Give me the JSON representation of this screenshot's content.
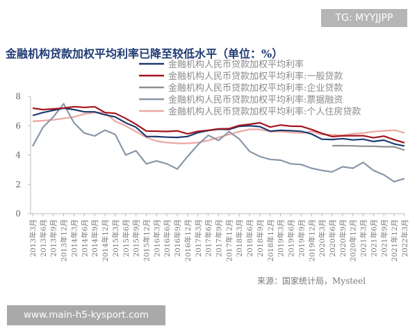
{
  "badge": "TG: MYYJJPP",
  "watermark": "www.main-h5-kysport.com",
  "chart_data": {
    "type": "line",
    "title": "金融机构贷款加权平均利率已降至较低水平（单位：%）",
    "source": "来源：国家统计局，Mysteel",
    "xlabel": "",
    "ylabel": "",
    "ylim": [
      0,
      8
    ],
    "yticks": [
      "0",
      "2",
      "4",
      "6",
      "8"
    ],
    "grid": false,
    "legend": "top-right",
    "categories": [
      "2013年3月",
      "2013年6月",
      "2013年9月",
      "2013年12月",
      "2014年3月",
      "2014年6月",
      "2014年9月",
      "2014年12月",
      "2015年3月",
      "2015年6月",
      "2015年9月",
      "2015年12月",
      "2016年3月",
      "2016年6月",
      "2016年9月",
      "2016年12月",
      "2017年3月",
      "2017年6月",
      "2017年9月",
      "2017年12月",
      "2018年3月",
      "2018年6月",
      "2018年9月",
      "2018年12月",
      "2019年3月",
      "2019年6月",
      "2019年9月",
      "2019年12月",
      "2020年3月",
      "2020年6月",
      "2020年9月",
      "2020年12月",
      "2021年3月",
      "2021年6月",
      "2021年9月",
      "2021年12月",
      "2022年3月"
    ],
    "series": [
      {
        "name": "金融机构人民币贷款加权平均利率",
        "color": "#1b3a6f",
        "values": [
          6.7,
          6.9,
          7.05,
          7.2,
          7.1,
          6.95,
          6.95,
          6.75,
          6.6,
          6.2,
          5.9,
          5.27,
          5.26,
          5.22,
          5.2,
          5.27,
          5.53,
          5.67,
          5.76,
          5.74,
          5.96,
          6.0,
          5.94,
          5.63,
          5.69,
          5.66,
          5.62,
          5.44,
          5.08,
          5.06,
          5.12,
          5.03,
          5.08,
          4.93,
          5.02,
          4.76,
          4.62
        ]
      },
      {
        "name": "金融机构人民币贷款加权平均利率:一般贷款",
        "color": "#a3141e",
        "values": [
          7.2,
          7.1,
          7.15,
          7.2,
          7.3,
          7.25,
          7.3,
          6.9,
          6.85,
          6.5,
          6.1,
          5.64,
          5.63,
          5.61,
          5.65,
          5.45,
          5.62,
          5.69,
          5.79,
          5.8,
          6.02,
          6.1,
          6.2,
          5.91,
          6.05,
          5.97,
          5.96,
          5.74,
          5.48,
          5.26,
          5.31,
          5.32,
          5.32,
          5.18,
          5.29,
          5.05,
          4.84
        ]
      },
      {
        "name": "金融机构人民币贷款加权平均利率:企业贷款",
        "color": "#8e8e8e",
        "values": [
          null,
          null,
          null,
          null,
          null,
          null,
          null,
          null,
          null,
          null,
          null,
          null,
          null,
          null,
          null,
          null,
          null,
          null,
          null,
          null,
          null,
          null,
          null,
          null,
          null,
          null,
          null,
          null,
          null,
          4.64,
          4.64,
          4.63,
          4.6,
          4.6,
          4.57,
          4.57,
          4.33
        ]
      },
      {
        "name": "金融机构人民币贷款加权平均利率:票据融资",
        "color": "#8896a8",
        "values": [
          4.6,
          5.9,
          6.6,
          7.5,
          6.2,
          5.5,
          5.3,
          5.7,
          5.4,
          4.0,
          4.3,
          3.4,
          3.6,
          3.4,
          3.05,
          3.9,
          4.7,
          5.35,
          5.0,
          5.6,
          5.1,
          4.25,
          3.9,
          3.7,
          3.65,
          3.4,
          3.35,
          3.1,
          2.95,
          2.85,
          3.2,
          3.1,
          3.5,
          2.95,
          2.65,
          2.18,
          2.4
        ]
      },
      {
        "name": "金融机构人民币贷款加权平均利率:个人住房贷款",
        "color": "#eba6a2",
        "values": [
          6.3,
          6.35,
          6.4,
          6.5,
          6.6,
          6.8,
          6.9,
          6.9,
          6.3,
          6.0,
          5.6,
          5.2,
          4.95,
          4.85,
          4.8,
          4.8,
          4.85,
          5.0,
          5.2,
          5.4,
          5.6,
          5.75,
          5.75,
          5.6,
          5.6,
          5.55,
          5.5,
          5.62,
          5.4,
          5.38,
          5.35,
          5.45,
          5.5,
          5.6,
          5.65,
          5.7,
          5.52
        ]
      }
    ]
  }
}
